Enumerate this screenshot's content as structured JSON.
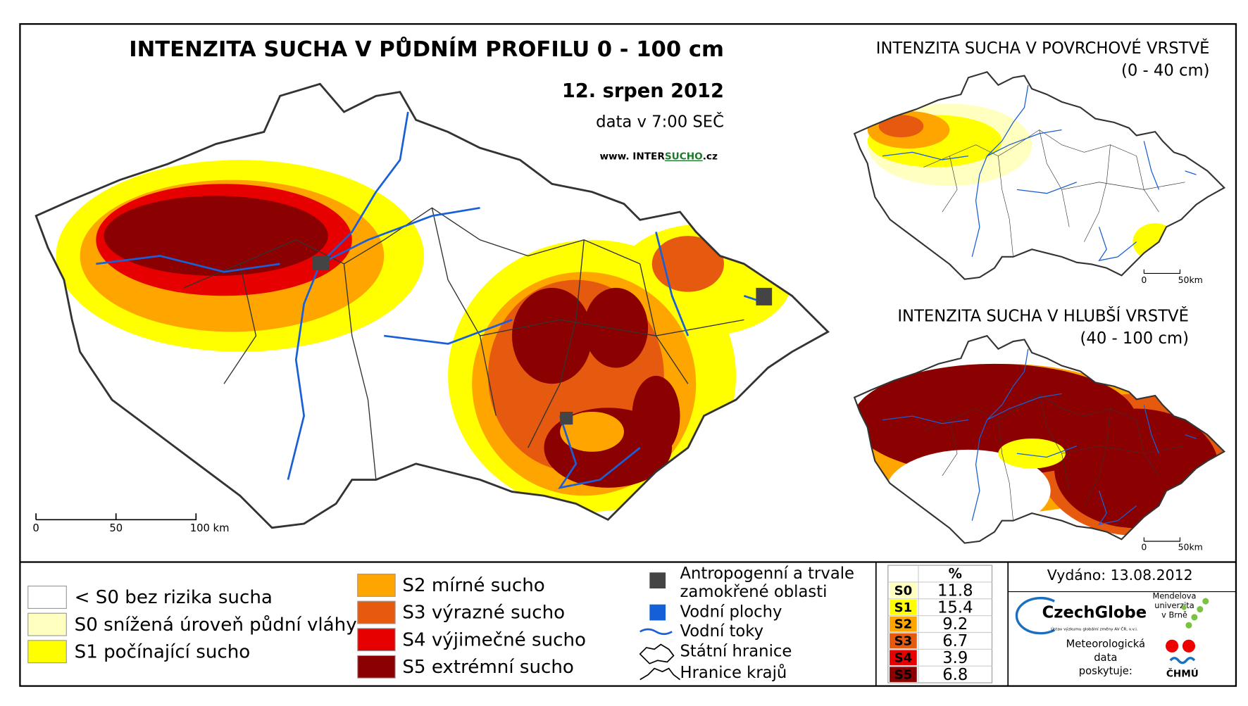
{
  "main_map": {
    "title": "INTENZITA SUCHA V PŮDNÍM PROFILU 0 - 100 cm",
    "date": "12. srpen 2012",
    "time": "data v 7:00 SEČ",
    "website": {
      "prefix": "www. INTER",
      "highlight": "SUCHO",
      "suffix": ".cz"
    },
    "scale": [
      "0",
      "50",
      "100 km"
    ]
  },
  "inset_top": {
    "title": "INTENZITA SUCHA V POVRCHOVÉ VRSTVĚ",
    "subtitle": "(0 - 40 cm)",
    "scale": [
      "0",
      "50km"
    ]
  },
  "inset_bottom": {
    "title": "INTENZITA SUCHA V HLUBŠÍ VRSTVĚ",
    "subtitle": "(40 - 100 cm)",
    "scale": [
      "0",
      "50km"
    ]
  },
  "legend": {
    "classes": [
      {
        "label": "< S0 bez rizika sucha",
        "color": "#ffffff"
      },
      {
        "label": "S0 snížená úroveň půdní vláhy",
        "color": "#ffffc0"
      },
      {
        "label": "S1 počínající sucho",
        "color": "#ffff00"
      },
      {
        "label": "S2 mírné sucho",
        "color": "#ffa500"
      },
      {
        "label": "S3 výrazné sucho",
        "color": "#e65a10"
      },
      {
        "label": "S4 výjimečné sucho",
        "color": "#e60000"
      },
      {
        "label": "S5 extrémní sucho",
        "color": "#8b0000"
      }
    ],
    "symbols": {
      "anthropogenic": [
        "Antropogenní a trvale",
        "zamokřené oblasti"
      ],
      "water_areas": "Vodní plochy",
      "rivers": "Vodní toky",
      "state_border": "Státní hranice",
      "regional_border": "Hranice krajů"
    }
  },
  "stats": {
    "header": "%",
    "rows": [
      {
        "class": "S0",
        "percent": "11.8",
        "color": "#ffffc0"
      },
      {
        "class": "S1",
        "percent": "15.4",
        "color": "#ffff00"
      },
      {
        "class": "S2",
        "percent": "9.2",
        "color": "#ffa500"
      },
      {
        "class": "S3",
        "percent": "6.7",
        "color": "#e65a10"
      },
      {
        "class": "S4",
        "percent": "3.9",
        "color": "#e60000"
      },
      {
        "class": "S5",
        "percent": "6.8",
        "color": "#8b0000"
      }
    ]
  },
  "issued": "Vydáno: 13.08.2012",
  "logos": {
    "czechglobe": "CzechGlobe",
    "czechglobe_sub": "Ústav výzkumu globální změny AV ČR, v.v.i.",
    "mendel": [
      "Mendelova",
      "univerzita",
      "v Brně"
    ],
    "provider": [
      "Meteorologická",
      "data",
      "poskytuje:"
    ],
    "chmu": "ČHMÚ"
  }
}
